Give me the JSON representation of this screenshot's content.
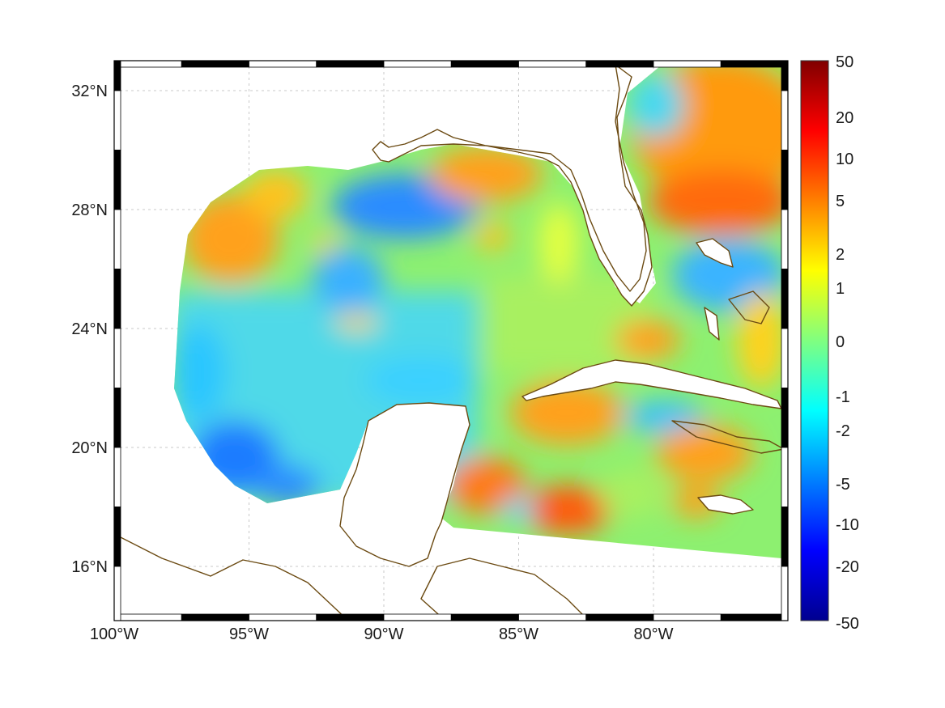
{
  "map": {
    "lon_range": [
      -100,
      -75
    ],
    "lat_range": [
      14.3,
      33
    ],
    "lon_ticks": [
      {
        "lon": -100,
        "label": "100°W"
      },
      {
        "lon": -95,
        "label": "95°W"
      },
      {
        "lon": -90,
        "label": "90°W"
      },
      {
        "lon": -85,
        "label": "85°W"
      },
      {
        "lon": -80,
        "label": "80°W"
      }
    ],
    "lat_ticks": [
      {
        "lat": 32,
        "label": "32°N"
      },
      {
        "lat": 28,
        "label": "28°N"
      },
      {
        "lat": 24,
        "label": "24°N"
      },
      {
        "lat": 20,
        "label": "20°N"
      },
      {
        "lat": 16,
        "label": "16°N"
      }
    ],
    "grid": true,
    "coastline_color": "#6b4a12",
    "land_color": "#ffffff"
  },
  "colorbar": {
    "colormap": "jet",
    "position": "right",
    "range_labels": [
      "50",
      "20",
      "10",
      "5",
      "2",
      "1",
      "0",
      "-1",
      "-2",
      "-5",
      "-10",
      "-20",
      "-50"
    ],
    "levels": [
      50,
      20,
      10,
      5,
      2,
      1,
      0,
      -1,
      -2,
      -5,
      -10,
      -20,
      -50
    ]
  },
  "field_regions": [
    {
      "name": "nw-gulf-warm",
      "value": 3
    },
    {
      "name": "north-central-cool",
      "value": -4
    },
    {
      "name": "de-soto-warm",
      "value": 3
    },
    {
      "name": "atlantic-warm",
      "value": 6
    },
    {
      "name": "caribbean-warm",
      "value": 4
    },
    {
      "name": "bay-of-campeche-cool",
      "value": -4
    }
  ]
}
